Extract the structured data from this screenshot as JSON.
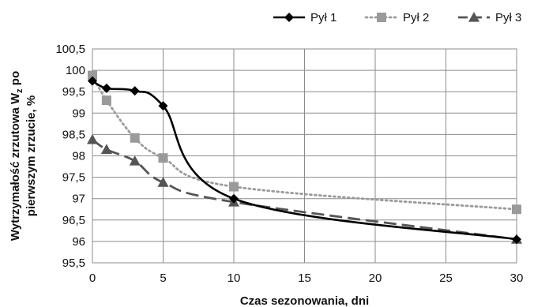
{
  "chart_data": {
    "type": "line",
    "xlabel": "Czas sezonowania, dni",
    "ylabel_line1": "Wytrzymałość zrzutowa W",
    "ylabel_sub": "z",
    "ylabel_line1_tail": " po",
    "ylabel_line2": "pierwszym zrzucie, %",
    "xlim": [
      0,
      30
    ],
    "ylim": [
      95.5,
      100.5
    ],
    "x_ticks": [
      0,
      5,
      10,
      15,
      20,
      25,
      30
    ],
    "x_tick_labels": [
      "0",
      "5",
      "10",
      "15",
      "20",
      "25",
      "30"
    ],
    "y_ticks": [
      95.5,
      96,
      96.5,
      97,
      97.5,
      98,
      98.5,
      99,
      99.5,
      100,
      100.5
    ],
    "y_tick_labels": [
      "95,5",
      "96",
      "96,5",
      "97",
      "97,5",
      "98",
      "98,5",
      "99",
      "99,5",
      "100",
      "100,5"
    ],
    "grid": true,
    "legend_position": "top-right",
    "series": [
      {
        "name": "Pył 1",
        "color": "#000000",
        "line_style": "solid",
        "marker": "diamond",
        "x": [
          0,
          1,
          3,
          5,
          10,
          30
        ],
        "y": [
          99.75,
          99.58,
          99.52,
          99.17,
          97.0,
          96.05
        ]
      },
      {
        "name": "Pył 2",
        "color": "#9a9a9a",
        "line_style": "dotted",
        "marker": "square",
        "x": [
          0,
          1,
          3,
          5,
          10,
          30
        ],
        "y": [
          99.88,
          99.3,
          98.42,
          97.95,
          97.28,
          96.75
        ]
      },
      {
        "name": "Pył 3",
        "color": "#555555",
        "line_style": "dashed",
        "marker": "triangle",
        "x": [
          0,
          1,
          3,
          5,
          10,
          30
        ],
        "y": [
          98.38,
          98.15,
          97.88,
          97.38,
          96.92,
          96.05
        ]
      }
    ]
  }
}
